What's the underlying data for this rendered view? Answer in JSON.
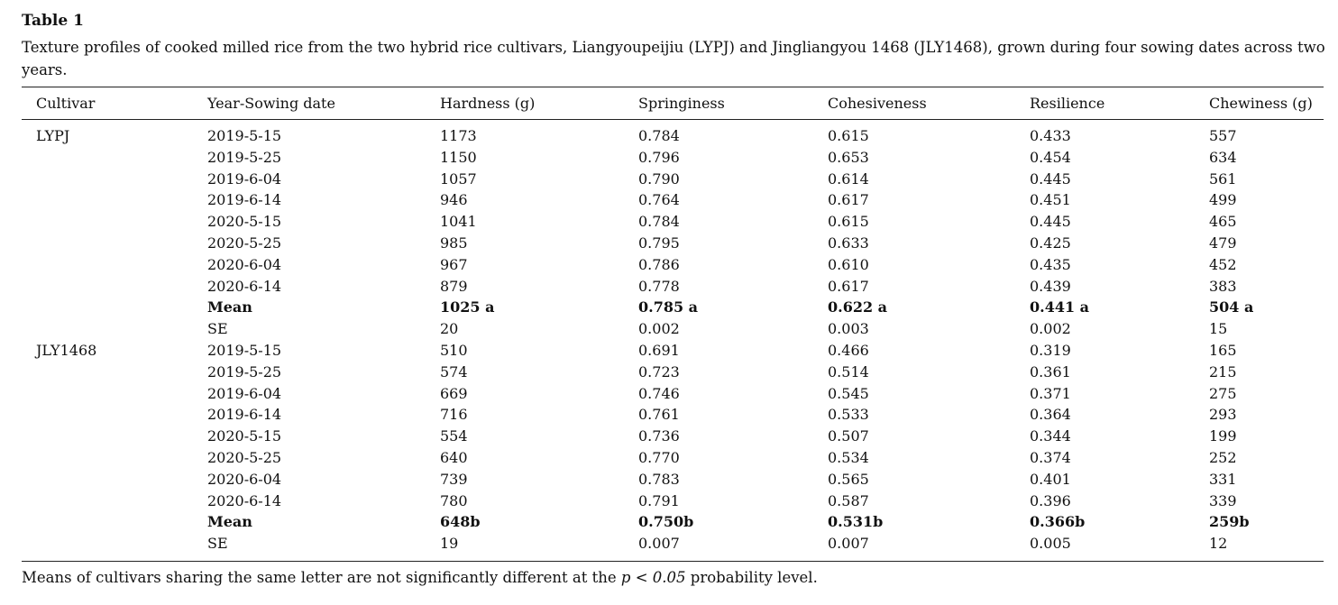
{
  "table": {
    "title": "Table 1",
    "caption": "Texture profiles of cooked milled rice from the two hybrid rice cultivars, Liangyoupeijiu (LYPJ) and Jingliangyou 1468 (JLY1468), grown during four sowing dates across two years.",
    "header": [
      "Cultivar",
      "Year-Sowing date",
      "Hardness (g)",
      "Springiness",
      "Cohesiveness",
      "Resilience",
      "Chewiness (g)"
    ],
    "groups": [
      {
        "cultivar": "LYPJ",
        "rows": [
          [
            "2019-5-15",
            "1173",
            "0.784",
            "0.615",
            "0.433",
            "557"
          ],
          [
            "2019-5-25",
            "1150",
            "0.796",
            "0.653",
            "0.454",
            "634"
          ],
          [
            "2019-6-04",
            "1057",
            "0.790",
            "0.614",
            "0.445",
            "561"
          ],
          [
            "2019-6-14",
            "946",
            "0.764",
            "0.617",
            "0.451",
            "499"
          ],
          [
            "2020-5-15",
            "1041",
            "0.784",
            "0.615",
            "0.445",
            "465"
          ],
          [
            "2020-5-25",
            "985",
            "0.795",
            "0.633",
            "0.425",
            "479"
          ],
          [
            "2020-6-04",
            "967",
            "0.786",
            "0.610",
            "0.435",
            "452"
          ],
          [
            "2020-6-14",
            "879",
            "0.778",
            "0.617",
            "0.439",
            "383"
          ]
        ],
        "mean": [
          "Mean",
          "1025 a",
          "0.785 a",
          "0.622 a",
          "0.441 a",
          "504 a"
        ],
        "se": [
          "SE",
          "20",
          "0.002",
          "0.003",
          "0.002",
          "15"
        ]
      },
      {
        "cultivar": "JLY1468",
        "rows": [
          [
            "2019-5-15",
            "510",
            "0.691",
            "0.466",
            "0.319",
            "165"
          ],
          [
            "2019-5-25",
            "574",
            "0.723",
            "0.514",
            "0.361",
            "215"
          ],
          [
            "2019-6-04",
            "669",
            "0.746",
            "0.545",
            "0.371",
            "275"
          ],
          [
            "2019-6-14",
            "716",
            "0.761",
            "0.533",
            "0.364",
            "293"
          ],
          [
            "2020-5-15",
            "554",
            "0.736",
            "0.507",
            "0.344",
            "199"
          ],
          [
            "2020-5-25",
            "640",
            "0.770",
            "0.534",
            "0.374",
            "252"
          ],
          [
            "2020-6-04",
            "739",
            "0.783",
            "0.565",
            "0.401",
            "331"
          ],
          [
            "2020-6-14",
            "780",
            "0.791",
            "0.587",
            "0.396",
            "339"
          ]
        ],
        "mean": [
          "Mean",
          "648b",
          "0.750b",
          "0.531b",
          "0.366b",
          "259b"
        ],
        "se": [
          "SE",
          "19",
          "0.007",
          "0.007",
          "0.005",
          "12"
        ]
      }
    ],
    "footnote": {
      "before": "Means of cultivars sharing the same letter are not significantly different at the ",
      "italic": "p < 0.05",
      "after": " probability level."
    }
  }
}
